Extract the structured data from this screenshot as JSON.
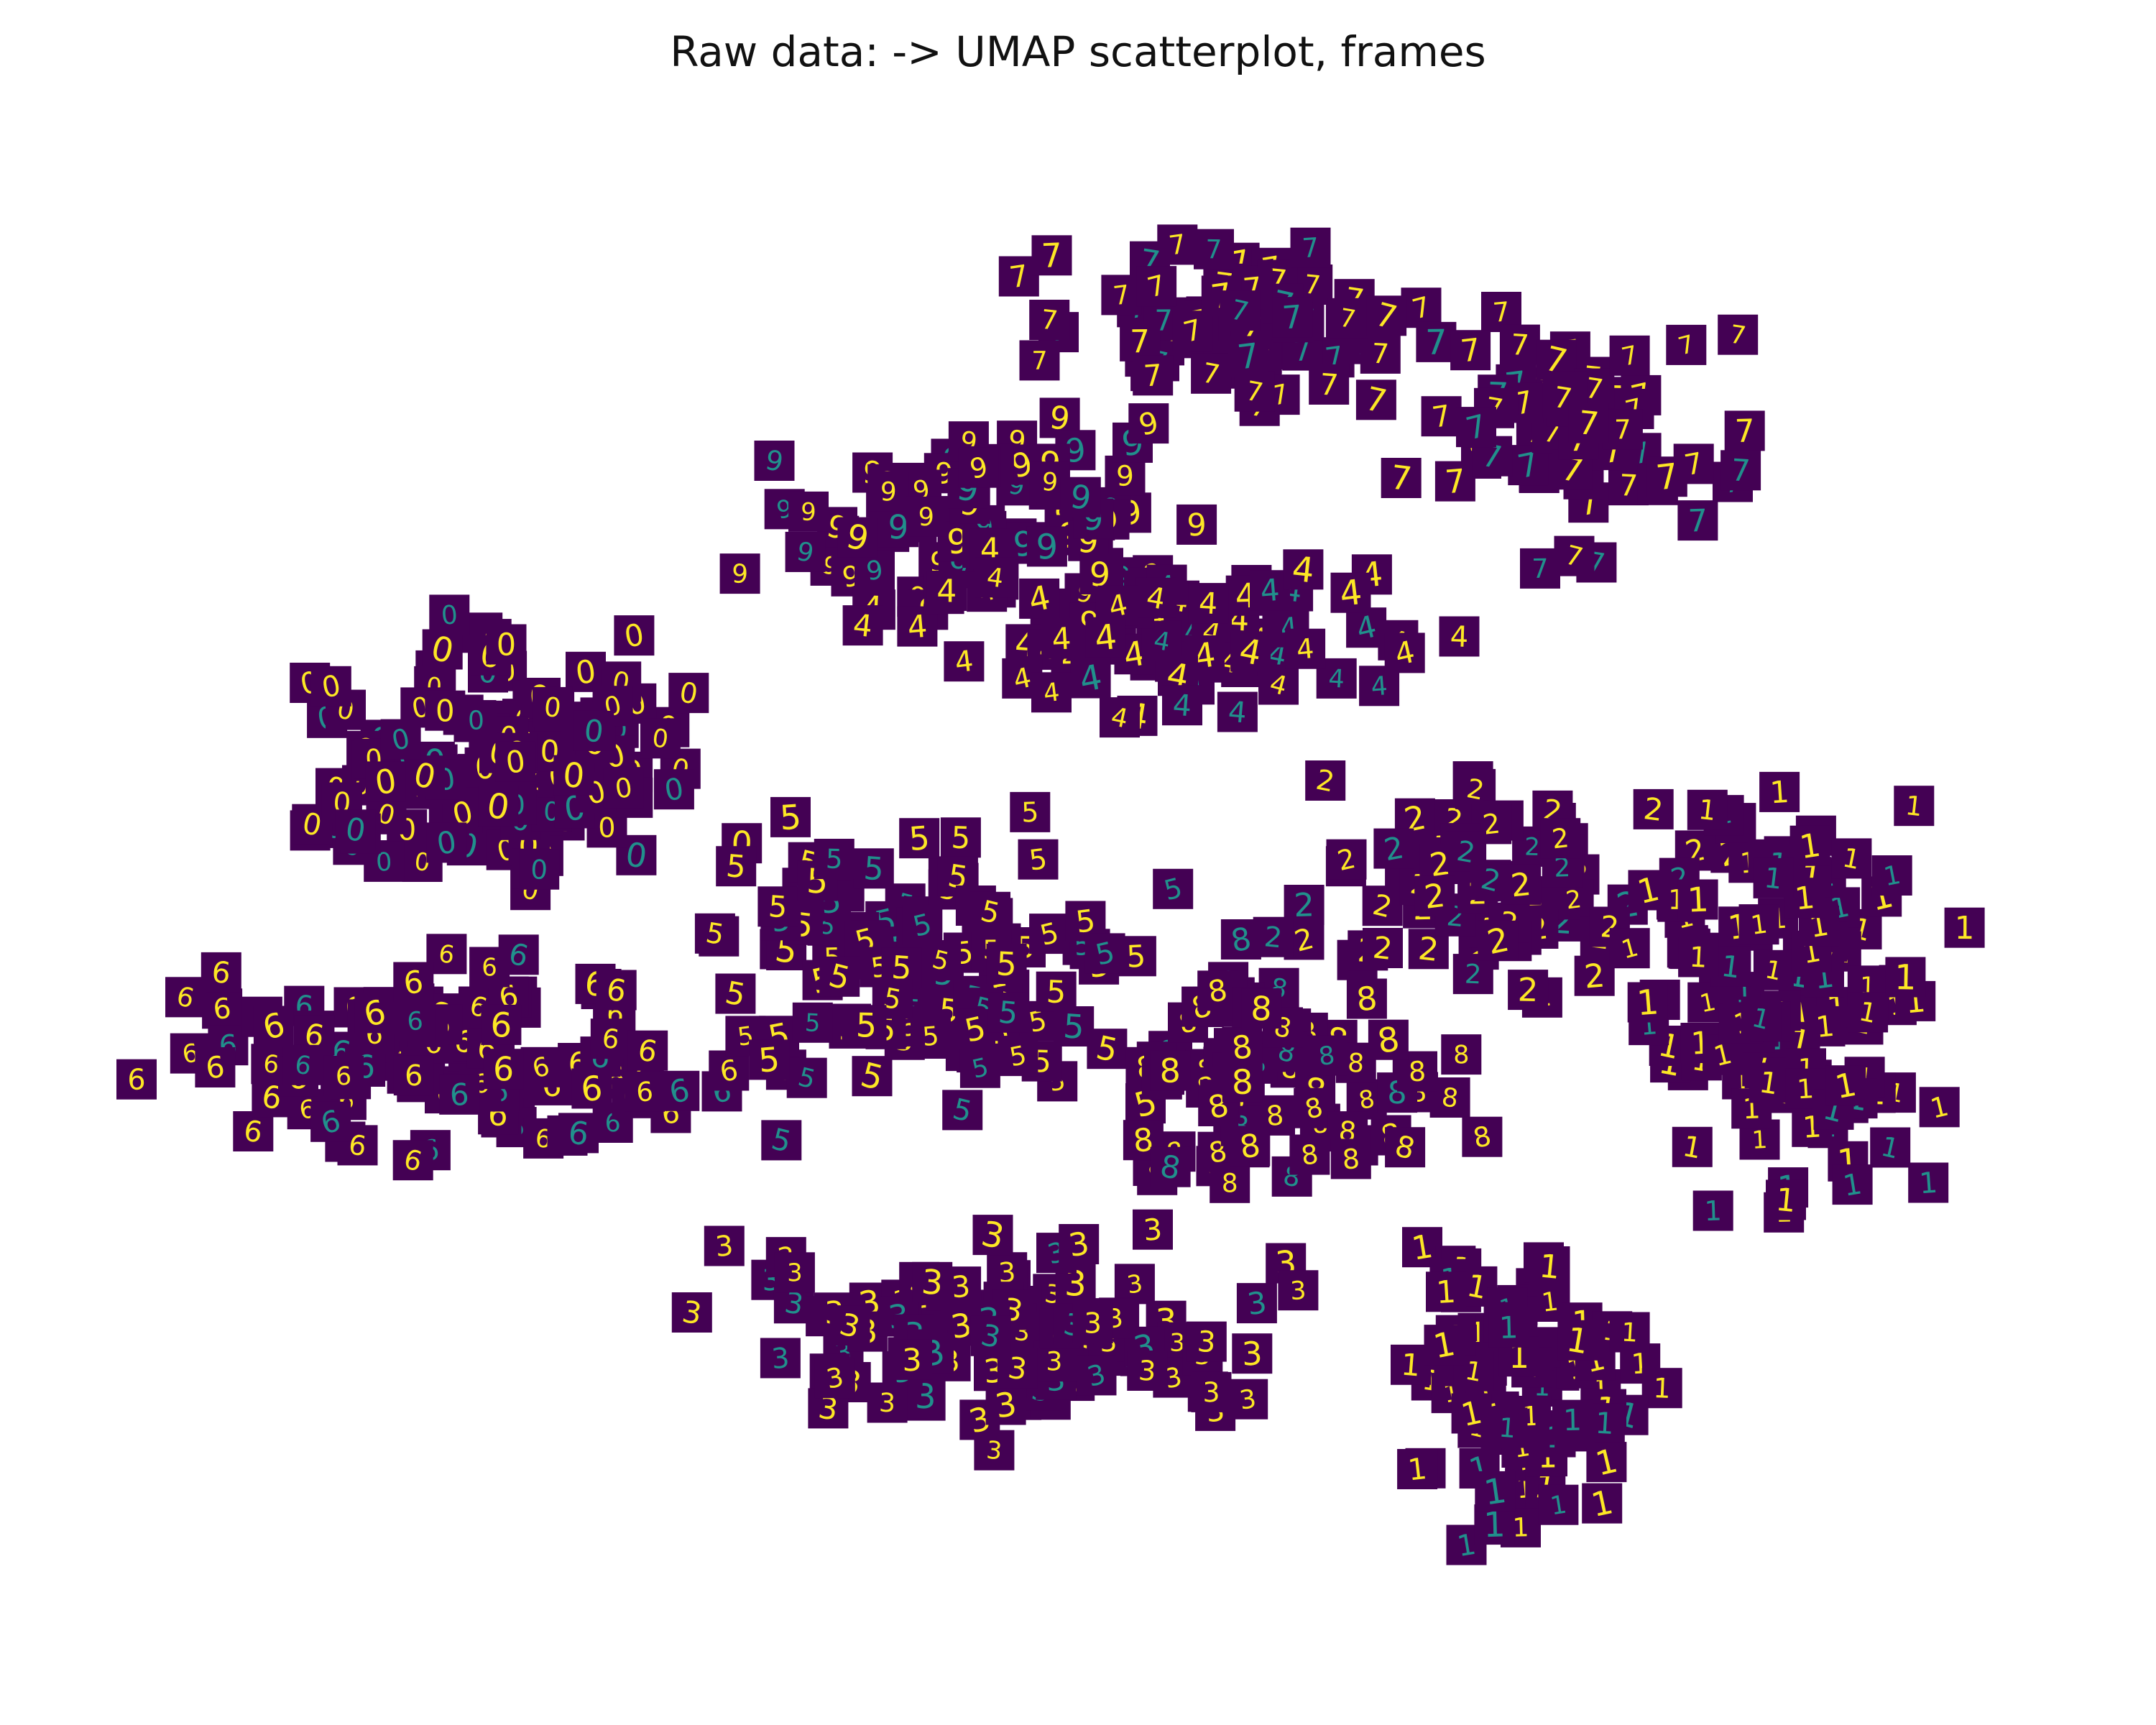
{
  "chart_data": {
    "type": "scatter",
    "title": "Raw data: -> UMAP scatterplot, frames",
    "xlabel": "",
    "ylabel": "",
    "axes_visible": false,
    "grid": false,
    "legend": "none",
    "marker": "digit-image-thumbnail",
    "thumbnail_colormap": [
      "#440154",
      "#21908c",
      "#fde725"
    ],
    "xlim": [
      0,
      100
    ],
    "ylim": [
      0,
      100
    ],
    "clusters": [
      {
        "label": "7",
        "center": [
          57,
          87
        ],
        "spread": [
          9,
          5
        ],
        "count": 70
      },
      {
        "label": "7",
        "center": [
          76,
          80
        ],
        "spread": [
          7,
          7
        ],
        "count": 60
      },
      {
        "label": "9",
        "center": [
          47,
          74
        ],
        "spread": [
          12,
          6
        ],
        "count": 80
      },
      {
        "label": "4",
        "center": [
          55,
          66
        ],
        "spread": [
          13,
          5
        ],
        "count": 70
      },
      {
        "label": "0",
        "center": [
          20,
          58
        ],
        "spread": [
          10,
          8
        ],
        "count": 130
      },
      {
        "label": "6",
        "center": [
          17,
          40
        ],
        "spread": [
          12,
          6
        ],
        "count": 110
      },
      {
        "label": "5",
        "center": [
          42,
          45
        ],
        "spread": [
          10,
          9
        ],
        "count": 110
      },
      {
        "label": "2",
        "center": [
          71,
          50
        ],
        "spread": [
          10,
          6
        ],
        "count": 80
      },
      {
        "label": "8",
        "center": [
          60,
          38
        ],
        "spread": [
          8,
          7
        ],
        "count": 80
      },
      {
        "label": "3",
        "center": [
          46,
          20
        ],
        "spread": [
          13,
          6
        ],
        "count": 110
      },
      {
        "label": "1",
        "center": [
          86,
          42
        ],
        "spread": [
          7,
          13
        ],
        "count": 110
      },
      {
        "label": "1",
        "center": [
          72,
          18
        ],
        "spread": [
          6,
          9
        ],
        "count": 80
      }
    ]
  }
}
